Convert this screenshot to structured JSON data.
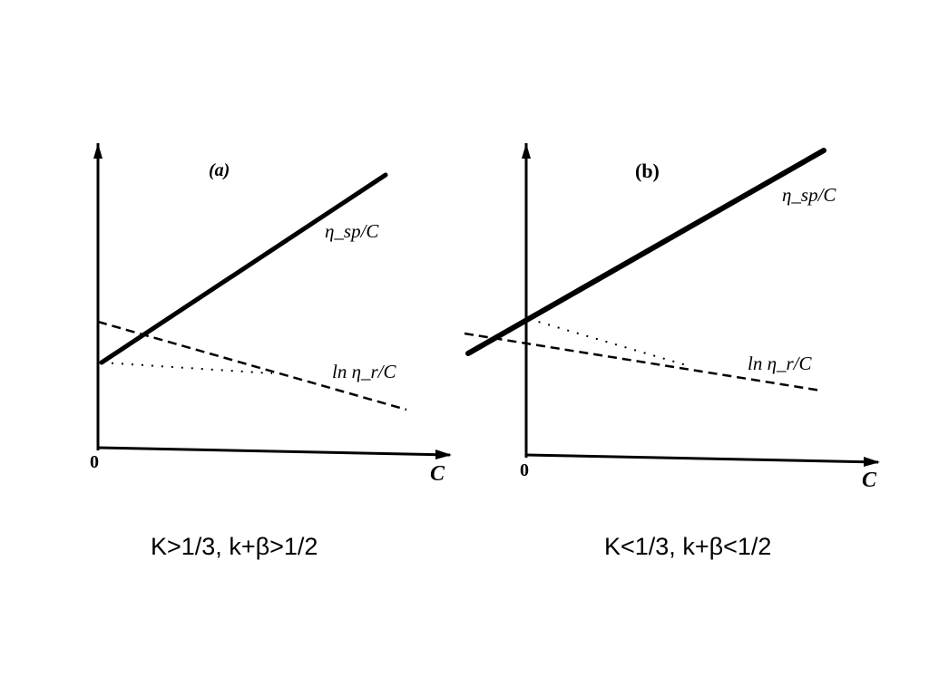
{
  "chart_data": [
    {
      "type": "line",
      "panel_label": "(a)",
      "x_axis_label": "C",
      "origin_label": "0",
      "series": [
        {
          "name": "η_sp/C",
          "style": "solid",
          "intercept": 4.0,
          "end_value": 9.2
        },
        {
          "name": "ln η_r/C",
          "style": "dashed",
          "intercept": 4.4,
          "end_value": 1.4
        },
        {
          "name": "",
          "style": "dotted",
          "intercept": 4.0,
          "end_value": 3.4
        }
      ],
      "x_range": [
        0,
        10
      ],
      "caption": "K>1/3, k+β>1/2"
    },
    {
      "type": "line",
      "panel_label": "(b)",
      "x_axis_label": "C",
      "origin_label": "0",
      "series": [
        {
          "name": "η_sp/C",
          "style": "solid",
          "intercept": 4.6,
          "end_value": 9.4
        },
        {
          "name": "ln η_r/C",
          "style": "dashed",
          "intercept": 3.9,
          "end_value": 2.2
        },
        {
          "name": "",
          "style": "dotted",
          "intercept": 4.6,
          "end_value": 3.0
        }
      ],
      "x_range": [
        0,
        10
      ],
      "caption": "K<1/3, k+β<1/2"
    }
  ]
}
